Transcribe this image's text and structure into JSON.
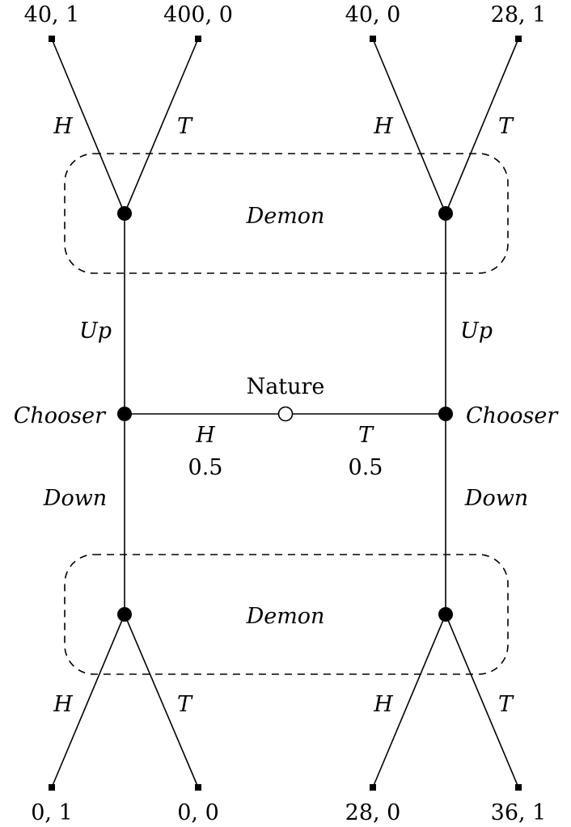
{
  "nature": {
    "label": "Nature",
    "left": {
      "label": "H",
      "prob": "0.5"
    },
    "right": {
      "label": "T",
      "prob": "0.5"
    }
  },
  "chooser": {
    "left_label": "Chooser",
    "right_label": "Chooser",
    "up_label": "Up",
    "down_label": "Down"
  },
  "demon": {
    "top_label": "Demon",
    "bottom_label": "Demon",
    "heads_label": "H",
    "tails_label": "T"
  },
  "payoffs": {
    "top": [
      "40, 1",
      "400, 0",
      "40, 0",
      "28, 1"
    ],
    "bottom": [
      "0, 1",
      "0, 0",
      "28, 0",
      "36, 1"
    ]
  }
}
